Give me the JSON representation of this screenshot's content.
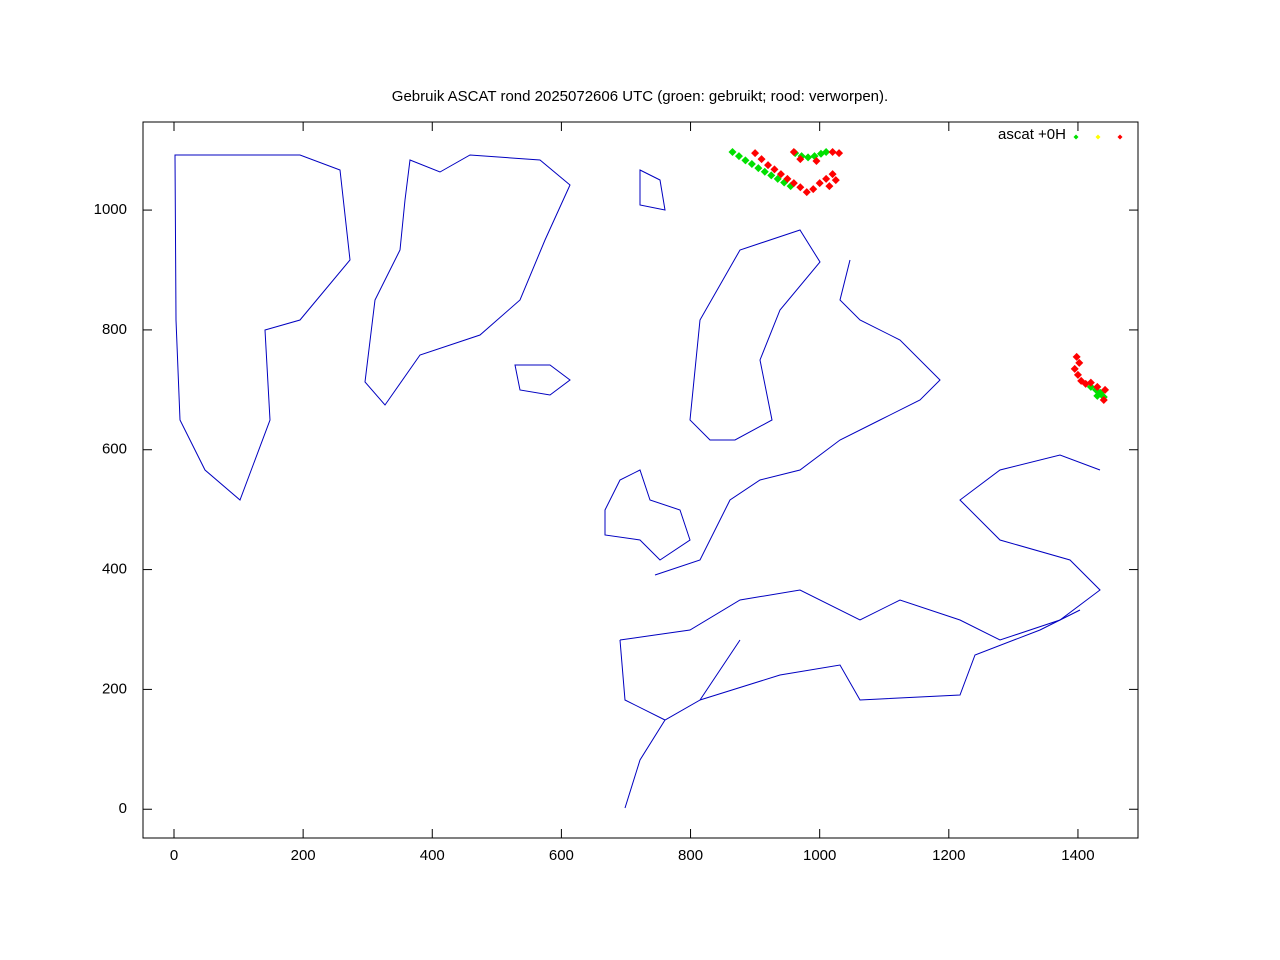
{
  "chart_data": {
    "type": "scatter",
    "title": "Gebruik ASCAT rond 2025072606 UTC (groen: gebruikt; rood: verworpen).",
    "legend": {
      "label": "ascat +0H",
      "colors": [
        "#00e000",
        "#ffff00",
        "#ff0000"
      ],
      "position": "top-right"
    },
    "xlim": [
      -48,
      1493
    ],
    "ylim": [
      -48,
      1147
    ],
    "xticks": [
      0,
      200,
      400,
      600,
      800,
      1000,
      1200,
      1400
    ],
    "yticks": [
      0,
      200,
      400,
      600,
      800,
      1000
    ],
    "series": [
      {
        "color": "#00e000",
        "x": [
          865,
          875,
          885,
          895,
          905,
          915,
          925,
          935,
          945,
          955,
          962,
          972,
          982,
          992,
          1002,
          1010,
          1420,
          1428,
          1435,
          1440,
          1430
        ],
        "y": [
          1097,
          1090,
          1083,
          1077,
          1070,
          1064,
          1058,
          1052,
          1046,
          1040,
          1095,
          1090,
          1088,
          1090,
          1094,
          1097,
          705,
          700,
          695,
          688,
          690
        ]
      },
      {
        "color": "#ff0000",
        "x": [
          900,
          910,
          920,
          930,
          940,
          950,
          960,
          970,
          980,
          990,
          1000,
          1010,
          1020,
          1025,
          1015,
          960,
          970,
          995,
          1020,
          1030,
          1398,
          1402,
          1395,
          1400,
          1405,
          1412,
          1420,
          1430,
          1442,
          1440
        ],
        "y": [
          1095,
          1085,
          1075,
          1068,
          1060,
          1052,
          1045,
          1038,
          1030,
          1035,
          1045,
          1052,
          1060,
          1050,
          1040,
          1097,
          1085,
          1082,
          1097,
          1095,
          755,
          745,
          735,
          725,
          715,
          710,
          712,
          705,
          700,
          683
        ]
      }
    ]
  }
}
